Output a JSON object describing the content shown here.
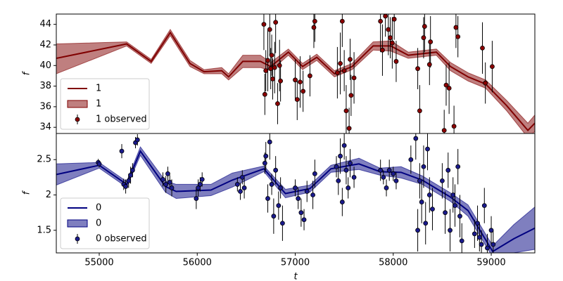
{
  "chart_data": [
    {
      "type": "line",
      "y_label": "f",
      "legend": "lower left",
      "xlim": [
        54562,
        59445
      ],
      "ylim": [
        33.4,
        45.0
      ],
      "yticks": [
        34,
        36,
        38,
        40,
        42,
        44
      ],
      "series": [
        {
          "name": "1",
          "type": "line",
          "color": "#800000",
          "x": [
            54562,
            55280,
            55530,
            55725,
            55926,
            56070,
            56250,
            56320,
            56465,
            56645,
            56750,
            56930,
            57075,
            57220,
            57400,
            57580,
            57795,
            57975,
            58153,
            58440,
            58584,
            58763,
            58943,
            59158,
            59374,
            59445
          ],
          "values": [
            40.7,
            42.1,
            40.4,
            43.2,
            40.2,
            39.4,
            39.5,
            38.9,
            40.4,
            40.4,
            39.9,
            41.3,
            39.9,
            40.8,
            39.2,
            39.9,
            41.9,
            41.9,
            41.0,
            41.3,
            39.9,
            38.9,
            38.2,
            36.1,
            33.7,
            34.4
          ]
        },
        {
          "name": "1",
          "type": "band",
          "color": "#800000",
          "x": [
            54562,
            55280,
            55530,
            55725,
            55926,
            56070,
            56250,
            56320,
            56465,
            56645,
            56750,
            56930,
            57075,
            57220,
            57400,
            57580,
            57795,
            57975,
            58153,
            58440,
            58584,
            58763,
            58943,
            59158,
            59374,
            59445
          ],
          "upper": [
            42.1,
            42.3,
            40.6,
            43.5,
            40.5,
            39.6,
            39.8,
            39.2,
            41.0,
            41.0,
            40.3,
            41.6,
            40.2,
            41.1,
            39.5,
            40.2,
            42.3,
            42.4,
            41.3,
            41.6,
            40.3,
            39.3,
            38.6,
            36.6,
            34.4,
            35.2
          ],
          "lower": [
            39.2,
            41.9,
            40.2,
            42.9,
            39.9,
            39.2,
            39.2,
            38.6,
            39.8,
            39.8,
            39.5,
            41.0,
            39.6,
            40.5,
            38.9,
            39.6,
            41.5,
            41.4,
            40.7,
            41.0,
            39.5,
            38.5,
            37.8,
            35.6,
            33.0,
            33.6
          ]
        },
        {
          "name": "1 observed",
          "type": "errorbar",
          "color": "#8b0000",
          "x": [
            56680,
            56690,
            56700,
            56720,
            56740,
            56750,
            56760,
            56770,
            56790,
            56800,
            56820,
            56840,
            56850,
            57000,
            57020,
            57050,
            57080,
            57150,
            57190,
            57200,
            57430,
            57460,
            57480,
            57500,
            57520,
            57550,
            57560,
            57570,
            57600,
            57870,
            57890,
            57920,
            57950,
            57970,
            57990,
            58010,
            58030,
            58250,
            58270,
            58310,
            58320,
            58370,
            58380,
            58520,
            58540,
            58570,
            58620,
            58640,
            58660,
            58910,
            58940,
            59010
          ],
          "values": [
            44.0,
            37.2,
            39.5,
            40.5,
            43.5,
            39.7,
            41.0,
            38.7,
            39.8,
            44.2,
            36.3,
            40.0,
            38.5,
            38.6,
            36.7,
            38.4,
            37.5,
            39.0,
            43.7,
            44.3,
            39.3,
            40.2,
            44.3,
            39.5,
            35.6,
            33.9,
            40.6,
            37.1,
            38.8,
            44.3,
            41.5,
            44.8,
            43.5,
            42.7,
            42.2,
            44.5,
            40.4,
            39.7,
            35.6,
            42.7,
            43.8,
            40.1,
            42.3,
            33.7,
            38.1,
            37.8,
            34.1,
            43.7,
            42.8,
            41.7,
            38.3,
            39.9
          ],
          "errors": [
            2.5,
            2,
            2,
            3,
            2.5,
            2,
            2,
            2,
            2.5,
            3,
            2,
            2.5,
            2,
            2,
            2,
            2.5,
            2,
            2,
            2,
            2,
            2.5,
            3,
            2.5,
            2,
            2.5,
            2,
            2,
            2,
            2.5,
            3,
            2.5,
            2,
            2.5,
            2,
            2.5,
            2,
            2,
            2,
            2.5,
            2,
            2.5,
            2,
            2.5,
            2,
            2,
            2.5,
            2,
            2,
            2,
            2.5,
            2,
            2.5
          ]
        }
      ]
    },
    {
      "type": "line",
      "y_label": "f",
      "x_label": "t",
      "legend": "lower left",
      "xlim": [
        54562,
        59445
      ],
      "xticks": [
        55000,
        56000,
        57000,
        58000,
        59000
      ],
      "ylim": [
        1.18,
        2.87
      ],
      "yticks": [
        1.5,
        2.0,
        2.5
      ],
      "series": [
        {
          "name": "0",
          "type": "line",
          "color": "#000080",
          "x": [
            54562,
            55000,
            55280,
            55420,
            55675,
            55785,
            56140,
            56357,
            56680,
            56900,
            57150,
            57364,
            57650,
            57865,
            58080,
            58296,
            58584,
            58763,
            59015,
            59230,
            59445
          ],
          "values": [
            2.29,
            2.42,
            2.15,
            2.62,
            2.12,
            2.05,
            2.07,
            2.21,
            2.37,
            2.02,
            2.09,
            2.37,
            2.44,
            2.33,
            2.32,
            2.21,
            1.97,
            1.78,
            1.2,
            1.38,
            1.53
          ]
        },
        {
          "name": "0",
          "type": "band",
          "color": "#000080",
          "x": [
            54562,
            55000,
            55280,
            55420,
            55675,
            55785,
            56140,
            56357,
            56680,
            56900,
            57150,
            57364,
            57650,
            57865,
            58080,
            58296,
            58584,
            58763,
            59015,
            59230,
            59445
          ],
          "upper": [
            2.44,
            2.46,
            2.19,
            2.68,
            2.2,
            2.15,
            2.15,
            2.31,
            2.41,
            2.08,
            2.14,
            2.42,
            2.52,
            2.38,
            2.4,
            2.27,
            2.03,
            1.86,
            1.28,
            1.58,
            1.83
          ],
          "lower": [
            2.14,
            2.38,
            2.11,
            2.56,
            2.04,
            1.95,
            1.99,
            2.11,
            2.33,
            1.96,
            2.04,
            2.32,
            2.36,
            2.28,
            2.24,
            2.15,
            1.91,
            1.7,
            1.12,
            1.18,
            1.23
          ]
        },
        {
          "name": "0 observed",
          "type": "errorbar",
          "color": "#1a1a8c",
          "x": [
            54990,
            55000,
            55230,
            55250,
            55270,
            55300,
            55320,
            55340,
            55370,
            55390,
            55650,
            55680,
            55700,
            55720,
            55740,
            55990,
            56010,
            56030,
            56050,
            56410,
            56440,
            56460,
            56480,
            56690,
            56700,
            56720,
            56740,
            56760,
            56780,
            56800,
            56830,
            56850,
            56870,
            57000,
            57030,
            57060,
            57090,
            57120,
            57180,
            57200,
            57420,
            57440,
            57460,
            57480,
            57500,
            57520,
            57540,
            57560,
            57600,
            57870,
            57900,
            57930,
            57960,
            58000,
            58030,
            58180,
            58230,
            58250,
            58270,
            58290,
            58310,
            58330,
            58350,
            58370,
            58400,
            58500,
            58530,
            58560,
            58580,
            58610,
            58630,
            58660,
            58680,
            58700,
            58830,
            58860,
            58880,
            58900,
            58930,
            58960,
            59000,
            59020
          ],
          "values": [
            2.46,
            2.44,
            2.62,
            2.15,
            2.12,
            2.2,
            2.28,
            2.35,
            2.74,
            2.78,
            2.22,
            2.15,
            2.3,
            2.18,
            2.1,
            1.95,
            2.1,
            2.15,
            2.22,
            2.15,
            2.05,
            2.25,
            2.1,
            2.45,
            2.55,
            1.95,
            2.75,
            2.15,
            1.7,
            2.35,
            1.85,
            2.1,
            1.6,
            2.1,
            1.95,
            1.75,
            1.65,
            2.05,
            2.0,
            2.3,
            2.4,
            2.2,
            2.55,
            1.9,
            2.7,
            2.35,
            2.1,
            2.45,
            2.25,
            2.35,
            2.25,
            2.1,
            2.35,
            2.3,
            2.2,
            2.5,
            2.8,
            1.5,
            2.2,
            1.9,
            2.4,
            1.6,
            2.65,
            2.0,
            1.8,
            2.2,
            1.75,
            2.35,
            1.5,
            2.0,
            1.85,
            2.4,
            1.7,
            1.35,
            1.45,
            1.6,
            1.4,
            1.3,
            1.85,
            1.25,
            1.5,
            1.3
          ],
          "errors": [
            0.05,
            0.05,
            0.1,
            0.08,
            0.1,
            0.1,
            0.12,
            0.1,
            0.08,
            0.08,
            0.1,
            0.12,
            0.1,
            0.1,
            0.12,
            0.15,
            0.12,
            0.1,
            0.1,
            0.1,
            0.12,
            0.1,
            0.15,
            0.15,
            0.2,
            0.2,
            0.25,
            0.15,
            0.25,
            0.2,
            0.2,
            0.15,
            0.25,
            0.12,
            0.15,
            0.2,
            0.15,
            0.15,
            0.2,
            0.2,
            0.15,
            0.2,
            0.25,
            0.2,
            0.2,
            0.2,
            0.15,
            0.2,
            0.15,
            0.15,
            0.1,
            0.12,
            0.15,
            0.1,
            0.12,
            0.2,
            0.3,
            0.3,
            0.25,
            0.3,
            0.3,
            0.3,
            0.3,
            0.25,
            0.3,
            0.25,
            0.3,
            0.25,
            0.3,
            0.25,
            0.3,
            0.25,
            0.3,
            0.25,
            0.2,
            0.25,
            0.2,
            0.2,
            0.25,
            0.2,
            0.2,
            0.2
          ]
        }
      ]
    }
  ]
}
